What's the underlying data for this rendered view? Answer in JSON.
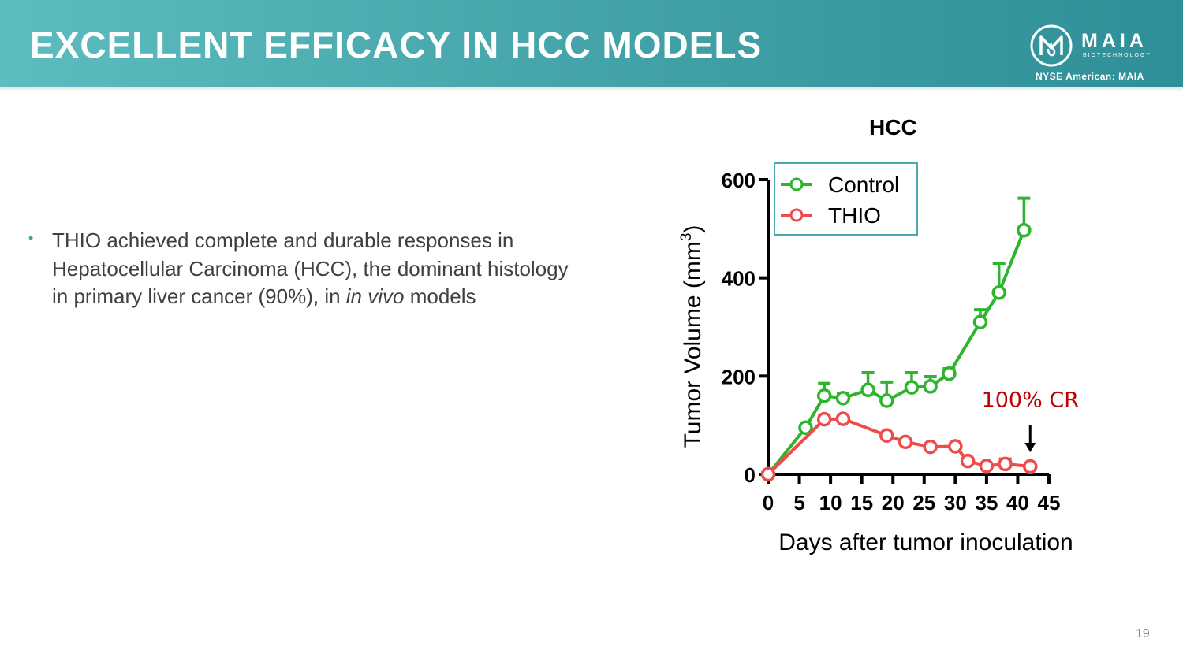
{
  "slide": {
    "title": "EXCELLENT EFFICACY IN HCC MODELS",
    "logo_name": "MAIA",
    "logo_sub": "BIOTECHNOLOGY",
    "ticker": "NYSE American: MAIA",
    "page_number": "19",
    "colors": {
      "header_start": "#5cbcbf",
      "header_end": "#2f8f98",
      "control": "#2db52d",
      "thio": "#ee4b4b",
      "annotation": "#c00000"
    }
  },
  "bullet": {
    "text_before": "THIO achieved complete and durable responses in Hepatocellular Carcinoma (HCC), the dominant histology in primary liver cancer (90%), in ",
    "text_italic": "in vivo",
    "text_after": " models"
  },
  "chart_data": {
    "type": "line",
    "title": "HCC",
    "xlabel": "Days after tumor inoculation",
    "ylabel": "Tumor Volume (mm3)",
    "ylabel_main": "Tumor Volume (mm",
    "ylabel_sup": "3",
    "ylabel_close": ")",
    "xlim": [
      0,
      45
    ],
    "ylim": [
      0,
      600
    ],
    "xticks": [
      0,
      5,
      10,
      15,
      20,
      25,
      30,
      35,
      40,
      45
    ],
    "yticks": [
      0,
      200,
      400,
      600
    ],
    "annotation": "100% CR",
    "annotation_x": 42,
    "series": [
      {
        "name": "Control",
        "x": [
          0,
          6,
          9,
          12,
          16,
          19,
          23,
          26,
          29,
          34,
          37,
          41
        ],
        "y": [
          0,
          95,
          160,
          155,
          172,
          150,
          177,
          179,
          205,
          310,
          370,
          497
        ],
        "err": [
          0,
          0,
          25,
          10,
          35,
          38,
          30,
          20,
          10,
          25,
          60,
          65
        ]
      },
      {
        "name": "THIO",
        "x": [
          0,
          9,
          12,
          19,
          22,
          26,
          30,
          32,
          35,
          38,
          42
        ],
        "y": [
          0,
          112,
          113,
          79,
          66,
          56,
          57,
          27,
          17,
          21,
          16
        ],
        "err": [
          0,
          8,
          5,
          3,
          4,
          3,
          4,
          4,
          3,
          10,
          3
        ]
      }
    ]
  }
}
